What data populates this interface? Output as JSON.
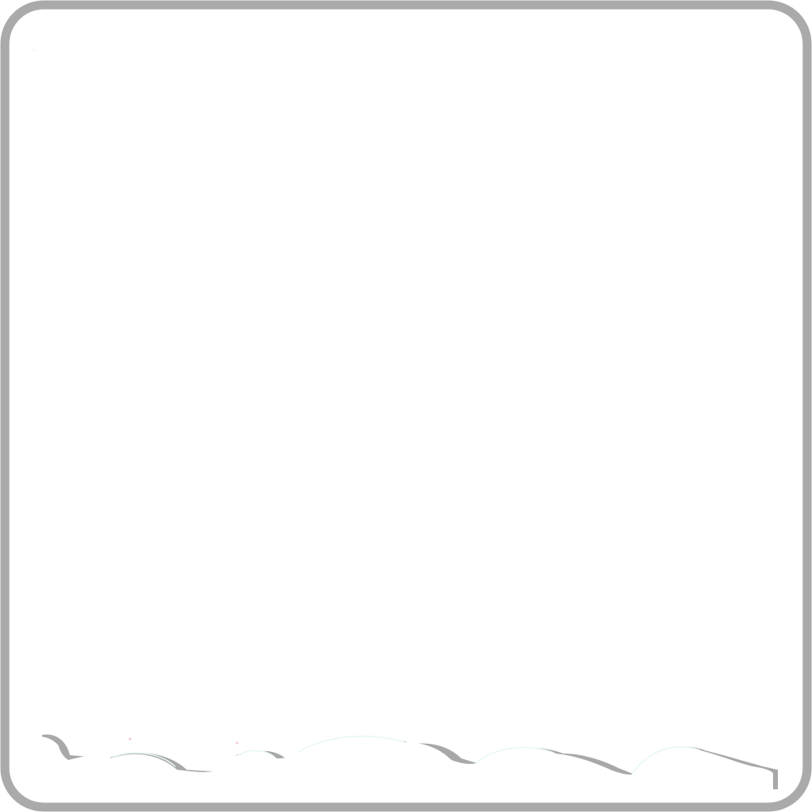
{
  "colors": {
    "background": "#ffffff",
    "border": "#aaaaaa",
    "cloud_fill": "#ffffff",
    "cloud_shadow": "#a8a8a8",
    "cloud_tint": "#e8f6f6"
  },
  "decoration": {
    "border_icon": "rounded-square-frame",
    "clouds_icon": "cloud-strip"
  }
}
